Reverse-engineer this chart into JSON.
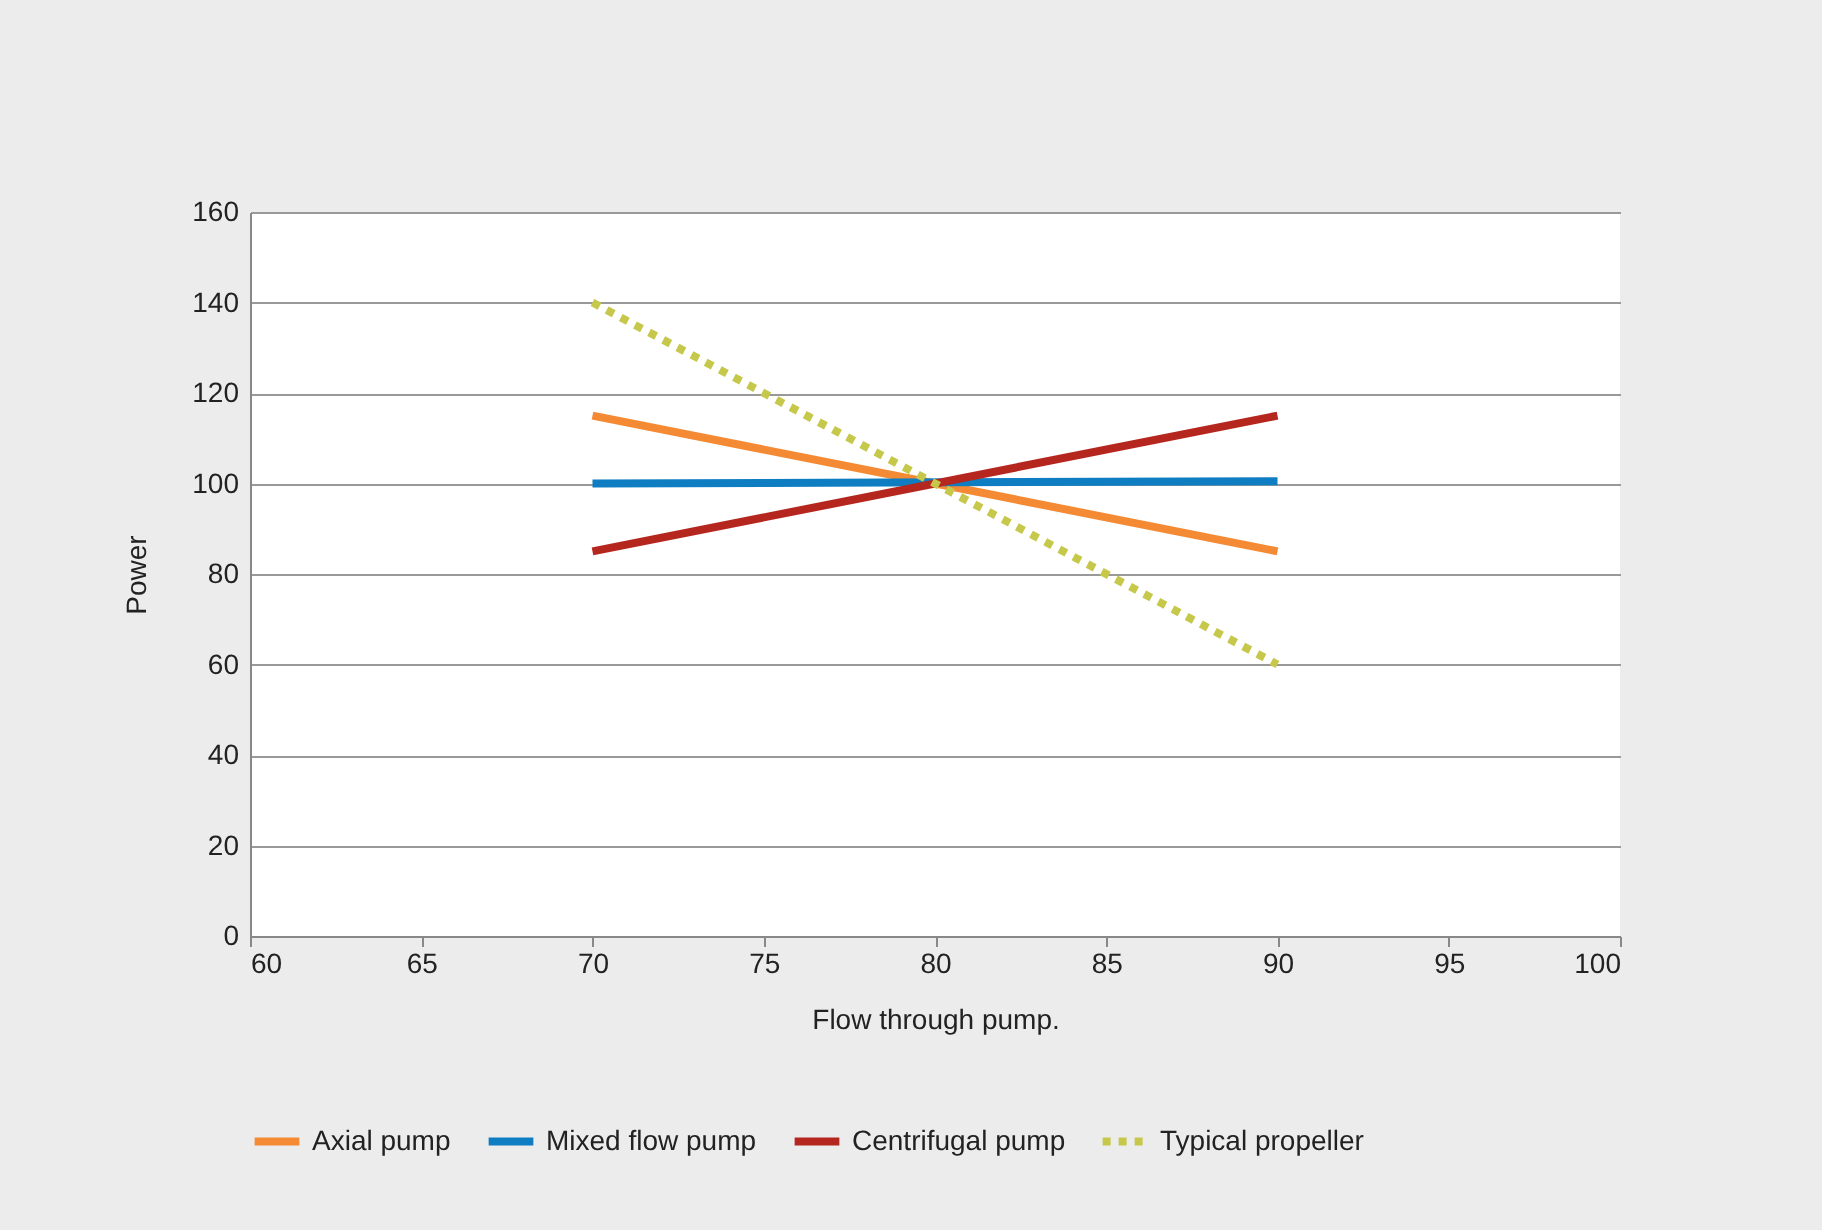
{
  "chart_data": {
    "type": "line",
    "xlabel": "Flow through pump.",
    "ylabel": "Power",
    "x": [
      70,
      90
    ],
    "series": [
      {
        "name": "Axial pump",
        "color": "#f58a34",
        "values": [
          115,
          85
        ]
      },
      {
        "name": "Mixed flow pump",
        "color": "#0f7dc2",
        "values": [
          100,
          100.5
        ]
      },
      {
        "name": "Centrifugal pump",
        "color": "#b5261e",
        "values": [
          85,
          115
        ]
      },
      {
        "name": "Typical propeller",
        "color": "#c5c84a",
        "values": [
          140,
          60
        ],
        "line_style": "dotted"
      }
    ],
    "xlim": [
      60,
      100
    ],
    "xticks": [
      60,
      65,
      70,
      75,
      80,
      85,
      90,
      95,
      100
    ],
    "ylim": [
      0,
      160
    ],
    "yticks": [
      0,
      20,
      40,
      60,
      80,
      100,
      120,
      140,
      160
    ],
    "grid": "y",
    "legend": "bottom",
    "line_style": "solid",
    "marker": "none"
  }
}
